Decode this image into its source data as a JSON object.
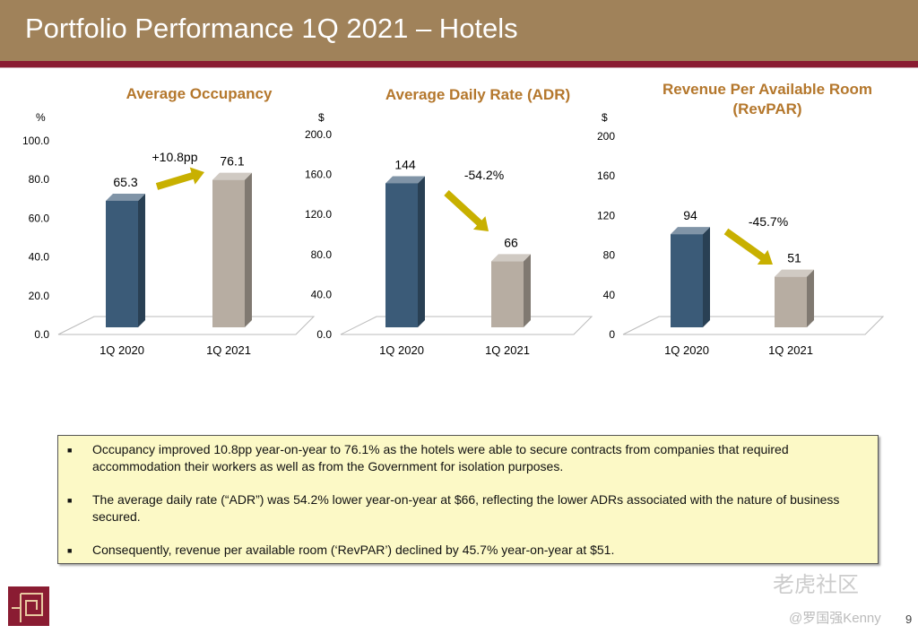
{
  "header": {
    "title": "Portfolio Performance 1Q 2021 – Hotels"
  },
  "chart_data": [
    {
      "type": "bar",
      "title": "Average Occupancy",
      "unit": "%",
      "categories": [
        "1Q 2020",
        "1Q 2021"
      ],
      "values": [
        65.3,
        76.1
      ],
      "value_labels": [
        "65.3",
        "76.1"
      ],
      "ylim": [
        0,
        100
      ],
      "ticks": [
        "0.0",
        "20.0",
        "40.0",
        "60.0",
        "80.0",
        "100.0"
      ],
      "change": "+10.8pp",
      "colors": [
        "#3b5b78",
        "#b7ada2"
      ]
    },
    {
      "type": "bar",
      "title": "Average Daily Rate (ADR)",
      "unit": "$",
      "categories": [
        "1Q 2020",
        "1Q 2021"
      ],
      "values": [
        144,
        66
      ],
      "value_labels": [
        "144",
        "66"
      ],
      "ylim": [
        0,
        200
      ],
      "ticks": [
        "0.0",
        "40.0",
        "80.0",
        "120.0",
        "160.0",
        "200.0"
      ],
      "change": "-54.2%",
      "colors": [
        "#3b5b78",
        "#b7ada2"
      ]
    },
    {
      "type": "bar",
      "title": "Revenue Per Available Room",
      "title2": "(RevPAR)",
      "unit": "$",
      "categories": [
        "1Q 2020",
        "1Q 2021"
      ],
      "values": [
        94,
        51
      ],
      "value_labels": [
        "94",
        "51"
      ],
      "ylim": [
        0,
        200
      ],
      "ticks": [
        "0",
        "40",
        "80",
        "120",
        "160",
        "200"
      ],
      "change": "-45.7%",
      "colors": [
        "#3b5b78",
        "#b7ada2"
      ]
    }
  ],
  "notes": [
    "Occupancy improved 10.8pp year-on-year to 76.1% as the hotels were able to secure contracts from companies that required accommodation their workers as well as from the Government for isolation purposes.",
    "The average daily rate (“ADR”) was 54.2% lower year-on-year at $66, reflecting the lower ADRs associated with the nature of business secured.",
    "Consequently, revenue per available room (‘RevPAR’) declined by 45.7% year-on-year at $51."
  ],
  "watermark": {
    "brand": "老虎社区",
    "user": "@罗国强Kenny"
  },
  "page_number": "9",
  "arrow_color": "#c8b000"
}
